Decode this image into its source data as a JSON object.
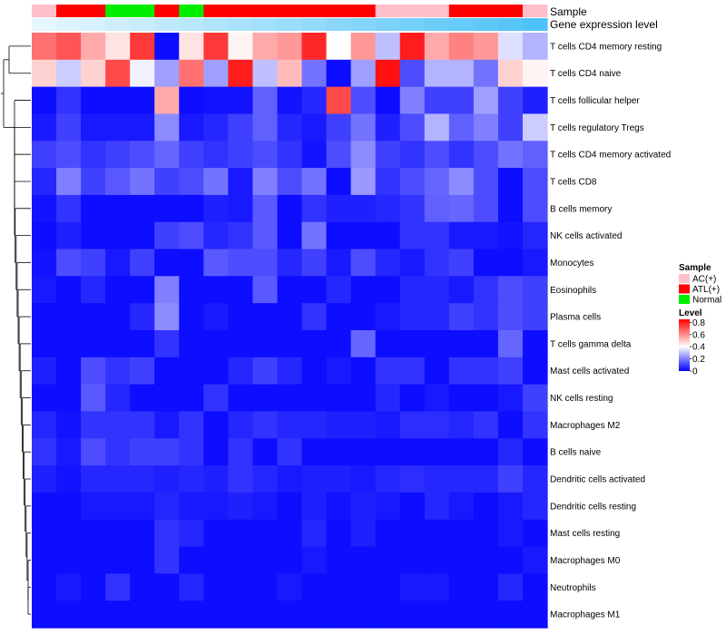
{
  "chart_data": {
    "type": "heatmap",
    "annotation_labels": {
      "sample": "Sample",
      "gene_expression": "Gene expression level"
    },
    "sample_groups": [
      "AC(+)",
      "ATL(+)",
      "ATL(+)",
      "Normal",
      "Normal",
      "ATL(+)",
      "Normal",
      "ATL(+)",
      "ATL(+)",
      "ATL(+)",
      "ATL(+)",
      "ATL(+)",
      "ATL(+)",
      "ATL(+)",
      "AC(+)",
      "AC(+)",
      "AC(+)",
      "ATL(+)",
      "ATL(+)",
      "ATL(+)",
      "AC(+)"
    ],
    "gene_expression_level": [
      0.0,
      0.05,
      0.1,
      0.15,
      0.2,
      0.25,
      0.3,
      0.35,
      0.4,
      0.45,
      0.5,
      0.55,
      0.6,
      0.65,
      0.7,
      0.75,
      0.8,
      0.85,
      0.9,
      0.95,
      1.0
    ],
    "rows": [
      "T cells CD4 memory resting",
      "T cells CD4 naive",
      "T cells follicular helper",
      "T cells regulatory  Tregs",
      "T cells CD4 memory activated",
      "T cells CD8",
      "B cells memory",
      "NK cells activated",
      "Monocytes",
      "Eosinophils",
      "Plasma cells",
      "T cells gamma delta",
      "Mast cells activated",
      "NK cells resting",
      "Macrophages M2",
      "B cells naive",
      "Dendritic cells activated",
      "Dendritic cells resting",
      "Mast cells resting",
      "Macrophages M0",
      "Neutrophils",
      "Macrophages M1"
    ],
    "values": [
      [
        0.65,
        0.7,
        0.55,
        0.45,
        0.75,
        0.02,
        0.45,
        0.75,
        0.42,
        0.55,
        0.58,
        0.78,
        0.4,
        0.58,
        0.3,
        0.8,
        0.55,
        0.62,
        0.58,
        0.35,
        0.28
      ],
      [
        0.48,
        0.32,
        0.48,
        0.72,
        0.38,
        0.25,
        0.65,
        0.25,
        0.8,
        0.3,
        0.52,
        0.18,
        0.02,
        0.25,
        0.82,
        0.12,
        0.28,
        0.28,
        0.18,
        0.48,
        0.42
      ],
      [
        0.02,
        0.08,
        0.02,
        0.02,
        0.02,
        0.55,
        0.02,
        0.03,
        0.03,
        0.15,
        0.03,
        0.06,
        0.72,
        0.12,
        0.02,
        0.2,
        0.1,
        0.1,
        0.25,
        0.1,
        0.05
      ],
      [
        0.04,
        0.1,
        0.04,
        0.04,
        0.04,
        0.22,
        0.04,
        0.06,
        0.1,
        0.15,
        0.06,
        0.04,
        0.1,
        0.18,
        0.05,
        0.12,
        0.28,
        0.15,
        0.2,
        0.1,
        0.32
      ],
      [
        0.1,
        0.12,
        0.08,
        0.1,
        0.12,
        0.16,
        0.1,
        0.08,
        0.1,
        0.12,
        0.08,
        0.03,
        0.12,
        0.22,
        0.1,
        0.08,
        0.12,
        0.08,
        0.12,
        0.18,
        0.15
      ],
      [
        0.06,
        0.2,
        0.1,
        0.14,
        0.18,
        0.1,
        0.12,
        0.18,
        0.04,
        0.2,
        0.12,
        0.18,
        0.02,
        0.24,
        0.08,
        0.12,
        0.16,
        0.22,
        0.12,
        0.02,
        0.12
      ],
      [
        0.03,
        0.08,
        0.02,
        0.02,
        0.02,
        0.02,
        0.02,
        0.05,
        0.04,
        0.14,
        0.02,
        0.08,
        0.05,
        0.05,
        0.06,
        0.08,
        0.15,
        0.16,
        0.12,
        0.02,
        0.12
      ],
      [
        0.02,
        0.05,
        0.02,
        0.02,
        0.02,
        0.1,
        0.12,
        0.06,
        0.08,
        0.14,
        0.02,
        0.18,
        0.02,
        0.02,
        0.02,
        0.08,
        0.08,
        0.04,
        0.04,
        0.03,
        0.06
      ],
      [
        0.03,
        0.12,
        0.1,
        0.04,
        0.1,
        0.02,
        0.02,
        0.14,
        0.12,
        0.12,
        0.06,
        0.1,
        0.04,
        0.12,
        0.06,
        0.04,
        0.08,
        0.1,
        0.02,
        0.02,
        0.04
      ],
      [
        0.04,
        0.02,
        0.06,
        0.02,
        0.02,
        0.2,
        0.02,
        0.02,
        0.02,
        0.14,
        0.02,
        0.02,
        0.06,
        0.02,
        0.02,
        0.06,
        0.06,
        0.04,
        0.08,
        0.12,
        0.1
      ],
      [
        0.02,
        0.02,
        0.02,
        0.02,
        0.06,
        0.22,
        0.02,
        0.04,
        0.02,
        0.02,
        0.02,
        0.08,
        0.02,
        0.02,
        0.04,
        0.06,
        0.06,
        0.1,
        0.08,
        0.12,
        0.1
      ],
      [
        0.02,
        0.02,
        0.02,
        0.02,
        0.02,
        0.08,
        0.02,
        0.02,
        0.02,
        0.02,
        0.02,
        0.02,
        0.02,
        0.16,
        0.02,
        0.02,
        0.02,
        0.02,
        0.02,
        0.16,
        0.02
      ],
      [
        0.05,
        0.02,
        0.12,
        0.08,
        0.1,
        0.02,
        0.02,
        0.02,
        0.06,
        0.1,
        0.06,
        0.02,
        0.04,
        0.02,
        0.08,
        0.08,
        0.02,
        0.08,
        0.08,
        0.1,
        0.02
      ],
      [
        0.02,
        0.02,
        0.14,
        0.06,
        0.02,
        0.02,
        0.02,
        0.08,
        0.02,
        0.02,
        0.02,
        0.02,
        0.02,
        0.02,
        0.06,
        0.02,
        0.04,
        0.02,
        0.02,
        0.04,
        0.1
      ],
      [
        0.06,
        0.03,
        0.08,
        0.08,
        0.08,
        0.04,
        0.08,
        0.02,
        0.06,
        0.08,
        0.06,
        0.06,
        0.05,
        0.05,
        0.04,
        0.07,
        0.07,
        0.06,
        0.08,
        0.02,
        0.08
      ],
      [
        0.08,
        0.04,
        0.12,
        0.08,
        0.1,
        0.1,
        0.08,
        0.02,
        0.08,
        0.02,
        0.08,
        0.02,
        0.02,
        0.02,
        0.02,
        0.02,
        0.02,
        0.02,
        0.02,
        0.06,
        0.02
      ],
      [
        0.05,
        0.03,
        0.06,
        0.06,
        0.06,
        0.05,
        0.06,
        0.05,
        0.08,
        0.06,
        0.04,
        0.05,
        0.05,
        0.04,
        0.06,
        0.07,
        0.06,
        0.06,
        0.06,
        0.1,
        0.06
      ],
      [
        0.02,
        0.02,
        0.04,
        0.04,
        0.04,
        0.06,
        0.04,
        0.04,
        0.05,
        0.04,
        0.02,
        0.05,
        0.03,
        0.05,
        0.04,
        0.02,
        0.06,
        0.04,
        0.02,
        0.04,
        0.06
      ],
      [
        0.02,
        0.02,
        0.02,
        0.02,
        0.02,
        0.08,
        0.06,
        0.02,
        0.02,
        0.02,
        0.02,
        0.06,
        0.02,
        0.05,
        0.02,
        0.02,
        0.02,
        0.02,
        0.02,
        0.04,
        0.02
      ],
      [
        0.02,
        0.02,
        0.02,
        0.02,
        0.02,
        0.08,
        0.02,
        0.02,
        0.02,
        0.02,
        0.02,
        0.04,
        0.02,
        0.02,
        0.02,
        0.02,
        0.02,
        0.02,
        0.02,
        0.02,
        0.04
      ],
      [
        0.02,
        0.04,
        0.02,
        0.08,
        0.02,
        0.02,
        0.06,
        0.02,
        0.02,
        0.02,
        0.04,
        0.02,
        0.02,
        0.02,
        0.02,
        0.04,
        0.04,
        0.02,
        0.02,
        0.06,
        0.02
      ],
      [
        0.02,
        0.02,
        0.02,
        0.02,
        0.02,
        0.02,
        0.02,
        0.02,
        0.02,
        0.02,
        0.02,
        0.02,
        0.02,
        0.02,
        0.02,
        0.02,
        0.02,
        0.02,
        0.02,
        0.02,
        0.02
      ]
    ],
    "legend": {
      "sample_title": "Sample",
      "sample_entries": [
        {
          "label": "AC(+)",
          "color": "#ffc0cb"
        },
        {
          "label": "ATL(+)",
          "color": "#ff0000"
        },
        {
          "label": "Normal",
          "color": "#00ee00"
        }
      ],
      "level_title": "Level",
      "level_ticks": [
        "0.8",
        "0.6",
        "0.4",
        "0.2",
        "0"
      ],
      "level_min": 0,
      "level_max": 0.85
    },
    "colors": {
      "low": "#0000ff",
      "mid": "#ffffff",
      "high": "#ff0000",
      "gene_low": "#e6f6fd",
      "gene_high": "#4fc3f7"
    }
  }
}
